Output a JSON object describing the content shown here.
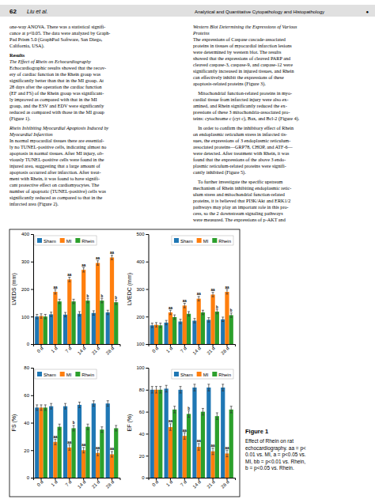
{
  "page": {
    "header": [
      "62",
      "Liu et al.",
      "Analytical and Quantitative Cytopathology and Histopathology",
      "●"
    ],
    "left_column": [
      {
        "lines": [
          "one-way ANOVA. There was a statistical signifi-",
          "cance at p<0.05. The data were analyzed by Graph-",
          "Pad Prism 5.0 (GraphPad Software, San Diego,",
          "California, USA)."
        ]
      },
      {
        "heading": "Results"
      },
      {
        "subheading": [
          "The Effect of Rhein on Echocardiography"
        ]
      },
      {
        "lines": [
          "Echocardiographic results showed that the recov-",
          "ery of cardiac function in the Rhein group was",
          "significantly better than that in the MI group. At",
          "28 days after the operation the cardiac function",
          "(EF and FS) of the Rhein group was significant-",
          "ly improved as compared with that in the MI",
          "group, and the ESV and EDV were significantly",
          "reduced as compared with those in the MI group",
          "(Figure 1)."
        ]
      },
      {
        "subheading": [
          "Rhein Inhibiting Myocardial Apoptosis Induced by",
          "Myocardial Infarction"
        ]
      },
      {
        "lines": [
          "In normal myocardial tissues there are essential-",
          "ly no TUNEL-positive cells, indicating almost no",
          "apoptosis in normal tissues. After MI injury, ob-",
          "viously TUNEL-positive cells were found in the",
          "injured area, suggesting that a large amount of",
          "apoptosis occurred after infarction. After treat-",
          "ment with Rhein, it was found to have signifi-",
          "cant protective effect on cardiomyocytes. The",
          "number of apoptotic (TUNEL-positive) cells was",
          "significantly reduced as compared to that in the",
          "infarcted area (Figure 2)."
        ]
      }
    ],
    "right_column": [
      {
        "subheading": [
          "Western Blot Determining the Expressions of Various",
          "Proteins"
        ]
      },
      {
        "lines": [
          "The expressions of Caspase cascade-associated",
          "proteins in tissues of myocardial infarction lesions",
          "were determined by western blot. The results",
          "showed that the expressions of cleaved PARP and",
          "cleaved caspase-3, caspase-9, and caspase-12 were",
          "significantly increased in injured tissues, and Rhein",
          "can effectively inhibit the expressions of these",
          "apoptosis-related proteins (Figure 3)."
        ]
      },
      {
        "lines": [
          "    Mitochondrial function-related proteins in myo-",
          "cardial tissue from infarcted injury were also ex-",
          "amined, and Rhein significantly reduced the ex-",
          "pressions of these 3 mitochondria-associated pro-",
          "teins: cytochrome c (cyt c), Bax, and Bcl-2 (Figure 4)."
        ]
      },
      {
        "lines": [
          "    In order to confirm the inhibitory effect of Rhein",
          "on endoplasmic reticulum stress in infarcted tis-",
          "sues, the expressions of 3 endoplasmic reticulum-",
          "associated proteins—GRP78, CHOP, and ATF-6—",
          "were detected. After treatment with Rhein, it was",
          "found that the expressions of the above 3 endo-",
          "plasmic reticulum-related proteins were signifi-",
          "cantly inhibited (Figure 5)."
        ]
      },
      {
        "lines": [
          "    To further investigate the specific upstream",
          "mechanism of Rhein inhibiting endoplasmic retic-",
          "ulum stress and mitochondrial function-related",
          "proteins, it is believed that PI3K/Akt and ERK1/2",
          "pathways may play an important role in this pro-",
          "cess, so the 2 downstream signaling pathways",
          "were measured. The expressions of p-AKT and"
        ]
      }
    ],
    "caption": {
      "title": "Figure 1",
      "lines": [
        "Effect of Rhein on rat",
        "echocardiography. aa = p<",
        "0.01 vs. MI, a = p<0.05 vs.",
        "MI, bb = p<0.01 vs. Rhein,",
        "b = p<0.05 vs. Rhein."
      ]
    }
  },
  "chart_data": [
    {
      "type": "bar",
      "ylabel": "LVEDS (mm)",
      "categories": [
        "0 d",
        "1 d",
        "7 d",
        "14 d",
        "21 d",
        "28 d"
      ],
      "series": [
        {
          "name": "Sham",
          "values": [
            100,
            108,
            107,
            110,
            113,
            115
          ],
          "errors": [
            8,
            8,
            8,
            8,
            8,
            8
          ]
        },
        {
          "name": "MI",
          "values": [
            102,
            190,
            235,
            270,
            295,
            315
          ],
          "errors": [
            8,
            8,
            8,
            8,
            8,
            8
          ],
          "annotations": [
            null,
            "aa",
            "aa",
            "aa",
            "aa",
            "aa"
          ]
        },
        {
          "name": "Rhein",
          "values": [
            100,
            155,
            155,
            158,
            158,
            152
          ],
          "errors": [
            8,
            8,
            8,
            8,
            8,
            8
          ],
          "annotations": [
            null,
            null,
            null,
            "b",
            "b",
            "b"
          ]
        }
      ],
      "ylim": [
        0,
        400
      ],
      "yticks": [
        0,
        100,
        200,
        300,
        400
      ],
      "legend": "upper left",
      "grid": false
    },
    {
      "type": "bar",
      "ylabel": "LVEDC (mm)",
      "categories": [
        "0 d",
        "1 d",
        "7 d",
        "14 d",
        "21 d",
        "28 d"
      ],
      "series": [
        {
          "name": "Sham",
          "values": [
            168,
            178,
            182,
            185,
            188,
            190
          ],
          "errors": [
            8,
            8,
            8,
            8,
            8,
            8
          ]
        },
        {
          "name": "MI",
          "values": [
            170,
            215,
            240,
            265,
            280,
            290
          ],
          "errors": [
            8,
            8,
            8,
            8,
            8,
            8
          ],
          "annotations": [
            null,
            "aa",
            "aa",
            "aa",
            "aa",
            "aa"
          ]
        },
        {
          "name": "Rhein",
          "values": [
            168,
            198,
            210,
            215,
            218,
            205
          ],
          "errors": [
            8,
            8,
            8,
            8,
            8,
            8
          ],
          "annotations": [
            null,
            null,
            null,
            null,
            "b",
            "b"
          ]
        }
      ],
      "ylim": [
        100,
        500
      ],
      "yticks": [
        100,
        200,
        300,
        400,
        500
      ],
      "legend": "upper right",
      "grid": false
    },
    {
      "type": "bar",
      "ylabel": "FS (%)",
      "categories": [
        "0 d",
        "1 d",
        "7 d",
        "14 d",
        "21 d",
        "28 d"
      ],
      "series": [
        {
          "name": "Sham",
          "values": [
            51,
            52,
            52,
            53,
            54,
            54
          ],
          "errors": [
            2,
            2,
            2,
            2,
            2,
            2
          ]
        },
        {
          "name": "MI",
          "values": [
            51,
            26,
            22,
            20,
            18,
            17
          ],
          "errors": [
            2,
            2,
            2,
            2,
            2,
            2
          ],
          "annotations": [
            null,
            "aa",
            "aa",
            "aa",
            "aa",
            "aa"
          ]
        },
        {
          "name": "Rhein",
          "values": [
            51,
            37,
            36,
            37,
            35,
            36
          ],
          "errors": [
            2,
            2,
            2,
            2,
            2,
            2
          ],
          "annotations": [
            null,
            null,
            "b",
            null,
            null,
            null
          ]
        }
      ],
      "ylim": [
        0,
        80
      ],
      "yticks": [
        0,
        20,
        40,
        60,
        80
      ],
      "legend": "upper left",
      "grid": false
    },
    {
      "type": "bar",
      "ylabel": "EF (%)",
      "categories": [
        "0 d",
        "1 d",
        "7 d",
        "14 d",
        "21 d",
        "28 d"
      ],
      "series": [
        {
          "name": "Sham",
          "values": [
            80,
            81,
            80,
            82,
            82,
            82
          ],
          "errors": [
            3,
            3,
            3,
            3,
            3,
            3
          ]
        },
        {
          "name": "MI",
          "values": [
            80,
            46,
            38,
            28,
            24,
            22
          ],
          "errors": [
            3,
            3,
            3,
            3,
            3,
            3
          ],
          "annotations": [
            null,
            "aa",
            "aa",
            "aa",
            "aa",
            "aa"
          ]
        },
        {
          "name": "Rhein",
          "values": [
            80,
            62,
            58,
            60,
            56,
            62
          ],
          "errors": [
            3,
            3,
            3,
            3,
            3,
            3
          ],
          "annotations": [
            null,
            null,
            "b",
            null,
            null,
            null
          ]
        }
      ],
      "ylim": [
        0,
        100
      ],
      "yticks": [
        0,
        20,
        40,
        60,
        80,
        100
      ],
      "legend": "upper right",
      "grid": false
    }
  ]
}
